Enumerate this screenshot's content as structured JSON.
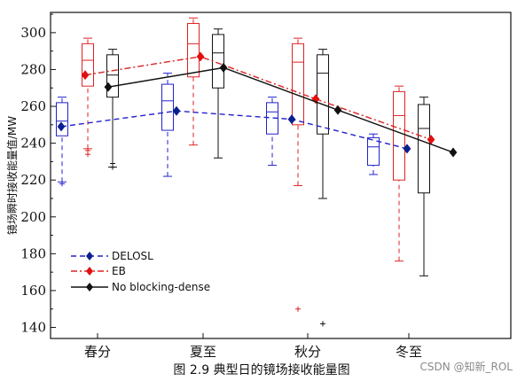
{
  "caption": "图 2.9  典型日的镜场接收能量图",
  "watermark": "CSDN @知新_ROL",
  "chart_data": {
    "type": "box",
    "title": "",
    "xlabel": "",
    "ylabel": "镜场瞬时接收能量值/MW",
    "ylim": [
      134,
      311
    ],
    "yticks": [
      140,
      160,
      180,
      200,
      220,
      240,
      260,
      280,
      300
    ],
    "categories": [
      "春分",
      "夏至",
      "秋分",
      "冬至"
    ],
    "legend_position": "bottom-left",
    "grid": false,
    "series": [
      {
        "name": "DELOSL",
        "color": "#2222cc",
        "line_style": "dashed",
        "means": [
          249,
          257.5,
          253,
          237
        ],
        "boxes": [
          {
            "whisker_low": 219,
            "q1": 244,
            "median": 252,
            "q3": 262,
            "whisker_high": 265,
            "outliers": [
              218
            ]
          },
          {
            "whisker_low": 222,
            "q1": 247,
            "median": 263,
            "q3": 272,
            "whisker_high": 278,
            "outliers": []
          },
          {
            "whisker_low": 228,
            "q1": 245,
            "median": 257,
            "q3": 262,
            "whisker_high": 265,
            "outliers": []
          },
          {
            "whisker_low": 223,
            "q1": 228,
            "median": 238,
            "q3": 243,
            "whisker_high": 245,
            "outliers": []
          }
        ]
      },
      {
        "name": "EB",
        "color": "#dd2222",
        "line_style": "dash-dot",
        "means": [
          277,
          287,
          264,
          242
        ],
        "boxes": [
          {
            "whisker_low": 237,
            "q1": 271,
            "median": 285,
            "q3": 294,
            "whisker_high": 297,
            "outliers": [
              236,
              234
            ]
          },
          {
            "whisker_low": 239,
            "q1": 276,
            "median": 294,
            "q3": 305,
            "whisker_high": 308,
            "outliers": []
          },
          {
            "whisker_low": 217,
            "q1": 250,
            "median": 284,
            "q3": 294,
            "whisker_high": 297,
            "outliers": [
              150
            ]
          },
          {
            "whisker_low": 176,
            "q1": 220,
            "median": 255,
            "q3": 268,
            "whisker_high": 271,
            "outliers": []
          }
        ]
      },
      {
        "name": "No blocking-dense",
        "color": "#111111",
        "line_style": "solid",
        "means": [
          270.5,
          281,
          258,
          235
        ],
        "boxes": [
          {
            "whisker_low": 227,
            "q1": 265,
            "median": 277,
            "q3": 288,
            "whisker_high": 291,
            "outliers": [
              229,
              227
            ]
          },
          {
            "whisker_low": 232,
            "q1": 270,
            "median": 289,
            "q3": 299,
            "whisker_high": 302,
            "outliers": []
          },
          {
            "whisker_low": 210,
            "q1": 245,
            "median": 278,
            "q3": 288,
            "whisker_high": 291,
            "outliers": [
              142
            ]
          },
          {
            "whisker_low": 168,
            "q1": 213,
            "median": 248,
            "q3": 261,
            "whisker_high": 265,
            "outliers": []
          }
        ]
      }
    ]
  }
}
